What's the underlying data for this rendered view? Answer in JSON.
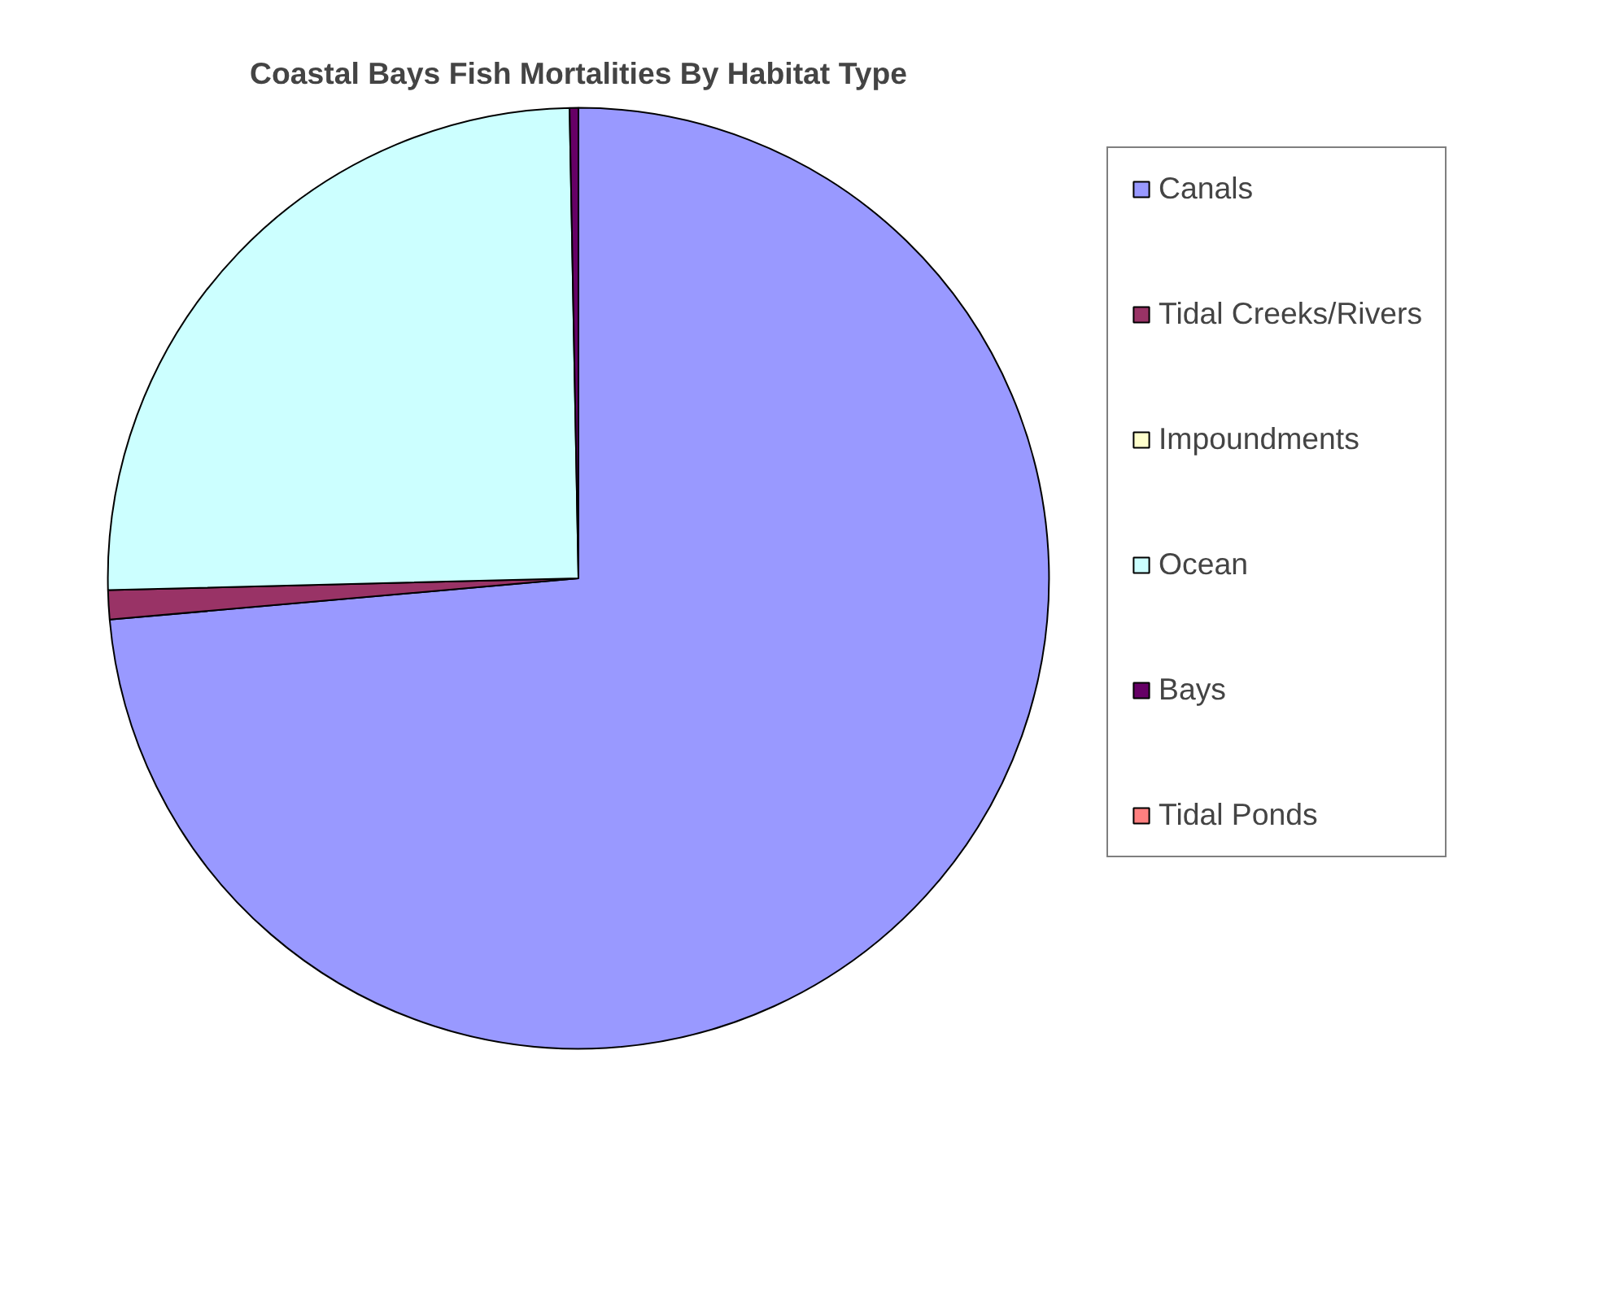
{
  "chart_data": {
    "type": "pie",
    "title": "Coastal Bays Fish Mortalities By Habitat Type",
    "categories": [
      "Canals",
      "Tidal Creeks/Rivers",
      "Impoundments",
      "Ocean",
      "Bays",
      "Tidal Ponds"
    ],
    "values": [
      73.6,
      1.0,
      0,
      25.1,
      0.3,
      0
    ],
    "colors": [
      "#9999ff",
      "#993366",
      "#ffffcc",
      "#ccffff",
      "#660066",
      "#ff8080"
    ],
    "legend": "right"
  }
}
